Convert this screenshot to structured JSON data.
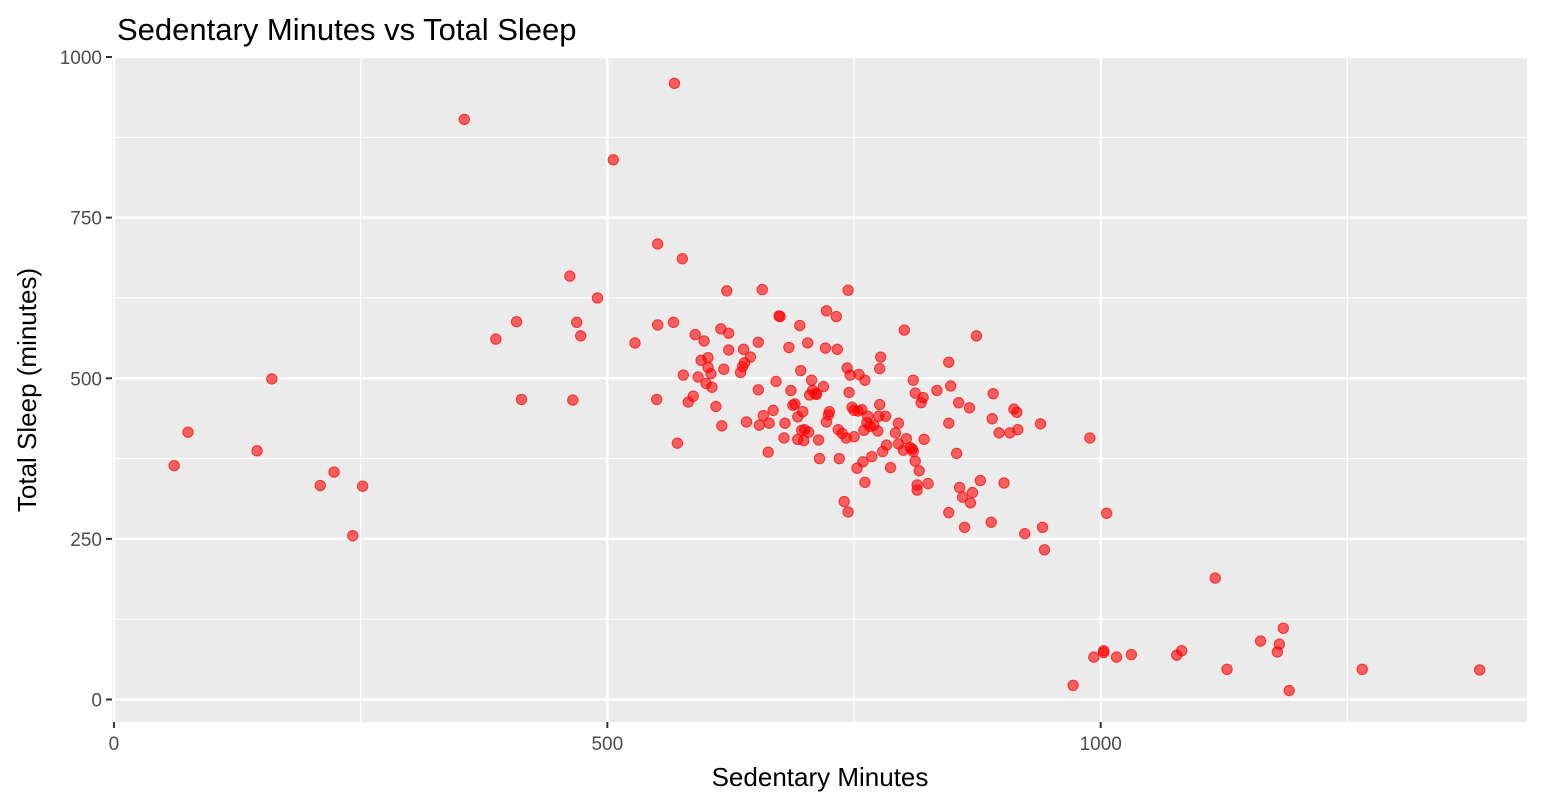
{
  "chart_data": {
    "type": "scatter",
    "title": "Sedentary Minutes vs Total Sleep",
    "xlabel": "Sedentary Minutes",
    "ylabel": "Total Sleep (minutes)",
    "xlim": [
      -2,
      1432
    ],
    "ylim": [
      -35,
      1000
    ],
    "x_ticks": [
      0,
      500,
      1000
    ],
    "x_tick_labels": [
      "0",
      "500",
      "1000"
    ],
    "y_ticks": [
      0,
      250,
      500,
      750,
      1000
    ],
    "y_tick_labels": [
      "0",
      "250",
      "500",
      "750",
      "1000"
    ],
    "grid": true,
    "point_color": "#ff0000",
    "panel_background": "#ebebeb",
    "grid_color": "#ffffff",
    "points": [
      [
        61,
        364
      ],
      [
        75,
        416
      ],
      [
        145,
        387
      ],
      [
        160,
        499
      ],
      [
        209,
        333
      ],
      [
        223,
        354
      ],
      [
        242,
        255
      ],
      [
        252,
        332
      ],
      [
        355,
        903
      ],
      [
        387,
        561
      ],
      [
        408,
        588
      ],
      [
        413,
        467
      ],
      [
        462,
        659
      ],
      [
        469,
        587
      ],
      [
        473,
        566
      ],
      [
        465,
        466
      ],
      [
        490,
        625
      ],
      [
        506,
        840
      ],
      [
        528,
        555
      ],
      [
        551,
        709
      ],
      [
        551,
        583
      ],
      [
        550,
        467
      ],
      [
        567,
        587
      ],
      [
        568,
        959
      ],
      [
        571,
        399
      ],
      [
        576,
        686
      ],
      [
        577,
        505
      ],
      [
        582,
        463
      ],
      [
        587,
        472
      ],
      [
        589,
        568
      ],
      [
        592,
        502
      ],
      [
        595,
        528
      ],
      [
        598,
        558
      ],
      [
        600,
        492
      ],
      [
        602,
        532
      ],
      [
        602,
        517
      ],
      [
        605,
        507
      ],
      [
        606,
        486
      ],
      [
        610,
        456
      ],
      [
        615,
        577
      ],
      [
        616,
        426
      ],
      [
        618,
        514
      ],
      [
        621,
        636
      ],
      [
        623,
        570
      ],
      [
        623,
        544
      ],
      [
        638,
        545
      ],
      [
        635,
        509
      ],
      [
        637,
        518
      ],
      [
        639,
        524
      ],
      [
        645,
        533
      ],
      [
        641,
        432
      ],
      [
        653,
        556
      ],
      [
        653,
        482
      ],
      [
        654,
        427
      ],
      [
        657,
        638
      ],
      [
        658,
        442
      ],
      [
        663,
        385
      ],
      [
        664,
        430
      ],
      [
        668,
        450
      ],
      [
        671,
        495
      ],
      [
        674,
        597
      ],
      [
        675,
        596
      ],
      [
        679,
        407
      ],
      [
        680,
        430
      ],
      [
        684,
        548
      ],
      [
        686,
        481
      ],
      [
        688,
        458
      ],
      [
        690,
        460
      ],
      [
        693,
        405
      ],
      [
        693,
        440
      ],
      [
        695,
        582
      ],
      [
        696,
        512
      ],
      [
        697,
        419
      ],
      [
        698,
        448
      ],
      [
        699,
        403
      ],
      [
        700,
        420
      ],
      [
        703,
        555
      ],
      [
        704,
        416
      ],
      [
        705,
        474
      ],
      [
        707,
        497
      ],
      [
        708,
        481
      ],
      [
        711,
        476
      ],
      [
        712,
        475
      ],
      [
        715,
        375
      ],
      [
        714,
        404
      ],
      [
        719,
        487
      ],
      [
        721,
        547
      ],
      [
        722,
        605
      ],
      [
        722,
        432
      ],
      [
        724,
        443
      ],
      [
        725,
        448
      ],
      [
        732,
        596
      ],
      [
        733,
        545
      ],
      [
        734,
        420
      ],
      [
        735,
        375
      ],
      [
        738,
        414
      ],
      [
        740,
        308
      ],
      [
        742,
        407
      ],
      [
        743,
        516
      ],
      [
        744,
        637
      ],
      [
        745,
        478
      ],
      [
        744,
        292
      ],
      [
        746,
        505
      ],
      [
        748,
        455
      ],
      [
        750,
        450
      ],
      [
        750,
        409
      ],
      [
        753,
        360
      ],
      [
        754,
        449
      ],
      [
        755,
        506
      ],
      [
        758,
        451
      ],
      [
        759,
        370
      ],
      [
        760,
        419
      ],
      [
        761,
        497
      ],
      [
        761,
        338
      ],
      [
        763,
        431
      ],
      [
        764,
        441
      ],
      [
        766,
        425
      ],
      [
        768,
        378
      ],
      [
        770,
        427
      ],
      [
        774,
        418
      ],
      [
        775,
        441
      ],
      [
        776,
        515
      ],
      [
        777,
        533
      ],
      [
        776,
        459
      ],
      [
        779,
        386
      ],
      [
        782,
        441
      ],
      [
        783,
        396
      ],
      [
        787,
        361
      ],
      [
        792,
        415
      ],
      [
        795,
        430
      ],
      [
        795,
        398
      ],
      [
        800,
        388
      ],
      [
        801,
        575
      ],
      [
        803,
        406
      ],
      [
        807,
        392
      ],
      [
        809,
        390
      ],
      [
        810,
        497
      ],
      [
        810,
        386
      ],
      [
        812,
        477
      ],
      [
        812,
        371
      ],
      [
        814,
        334
      ],
      [
        814,
        326
      ],
      [
        816,
        356
      ],
      [
        818,
        462
      ],
      [
        820,
        470
      ],
      [
        821,
        405
      ],
      [
        825,
        336
      ],
      [
        834,
        481
      ],
      [
        846,
        525
      ],
      [
        846,
        291
      ],
      [
        846,
        430
      ],
      [
        848,
        488
      ],
      [
        854,
        383
      ],
      [
        856,
        462
      ],
      [
        857,
        330
      ],
      [
        860,
        315
      ],
      [
        862,
        268
      ],
      [
        867,
        454
      ],
      [
        868,
        306
      ],
      [
        870,
        322
      ],
      [
        874,
        566
      ],
      [
        878,
        341
      ],
      [
        889,
        276
      ],
      [
        890,
        437
      ],
      [
        891,
        476
      ],
      [
        897,
        415
      ],
      [
        902,
        337
      ],
      [
        908,
        415
      ],
      [
        912,
        452
      ],
      [
        915,
        447
      ],
      [
        916,
        420
      ],
      [
        923,
        258
      ],
      [
        939,
        429
      ],
      [
        941,
        268
      ],
      [
        943,
        233
      ],
      [
        972,
        22
      ],
      [
        989,
        407
      ],
      [
        993,
        66
      ],
      [
        1003,
        73
      ],
      [
        1003,
        76
      ],
      [
        1006,
        290
      ],
      [
        1016,
        66
      ],
      [
        1031,
        70
      ],
      [
        1077,
        69
      ],
      [
        1082,
        76
      ],
      [
        1116,
        189
      ],
      [
        1128,
        47
      ],
      [
        1162,
        91
      ],
      [
        1179,
        74
      ],
      [
        1181,
        86
      ],
      [
        1185,
        111
      ],
      [
        1191,
        14
      ],
      [
        1265,
        47
      ],
      [
        1384,
        46
      ]
    ]
  }
}
